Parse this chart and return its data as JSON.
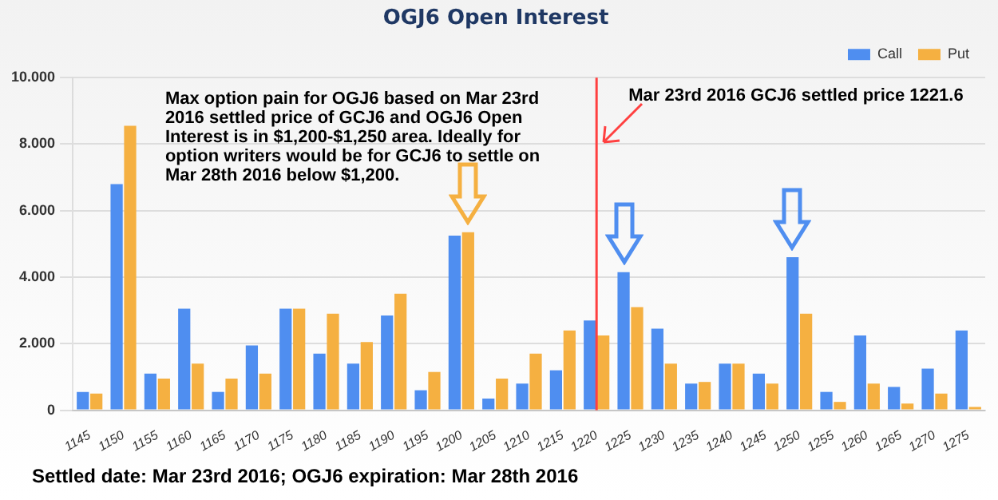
{
  "chart_data": {
    "type": "bar",
    "title": "OGJ6 Open Interest",
    "categories": [
      "1145",
      "1150",
      "1155",
      "1160",
      "1165",
      "1170",
      "1175",
      "1180",
      "1185",
      "1190",
      "1195",
      "1200",
      "1205",
      "1210",
      "1215",
      "1220",
      "1225",
      "1230",
      "1235",
      "1240",
      "1245",
      "1250",
      "1255",
      "1260",
      "1265",
      "1270",
      "1275"
    ],
    "series": [
      {
        "name": "Call",
        "color": "#4f8ef0",
        "values": [
          0.55,
          6.8,
          1.1,
          3.05,
          0.55,
          1.95,
          3.05,
          1.7,
          1.4,
          2.85,
          0.6,
          5.25,
          0.35,
          0.8,
          1.2,
          2.7,
          4.15,
          2.45,
          0.8,
          1.4,
          1.1,
          4.6,
          0.55,
          2.25,
          0.7,
          1.25,
          2.4
        ]
      },
      {
        "name": "Put",
        "color": "#f5b041",
        "values": [
          0.5,
          8.55,
          0.95,
          1.4,
          0.95,
          1.1,
          3.05,
          2.9,
          2.05,
          3.5,
          1.15,
          5.35,
          0.95,
          1.7,
          2.4,
          2.25,
          3.1,
          1.4,
          0.85,
          1.4,
          0.8,
          2.9,
          0.25,
          0.8,
          0.2,
          0.5,
          0.1
        ]
      }
    ],
    "ylim": [
      0,
      10
    ],
    "yticks": [
      0,
      {
        "value": 2,
        "label": "2.000"
      },
      {
        "value": 4,
        "label": "4.000"
      },
      {
        "value": 6,
        "label": "6.000"
      },
      {
        "value": 8,
        "label": "8.000"
      },
      {
        "value": 10,
        "label": "10.000"
      }
    ],
    "grid": "y",
    "legend": "top right",
    "ref_lines": [
      {
        "axis": "x",
        "value": "1220",
        "label": "Mar 23rd 2016 GCJ6 settled price 1221.6",
        "color": "#ff4040"
      }
    ],
    "annotations": [
      "Max option pain for OGJ6 based on Mar 23rd 2016 settled price of GCJ6 and OGJ6 Open Interest is in $1,200-$1,250 area. Ideally for option writers would be for GCJ6 to settle on Mar 28th 2016 below $1,200.",
      "Settled date: Mar 23rd 2016; OGJ6 expiration: Mar 28th 2016"
    ]
  }
}
